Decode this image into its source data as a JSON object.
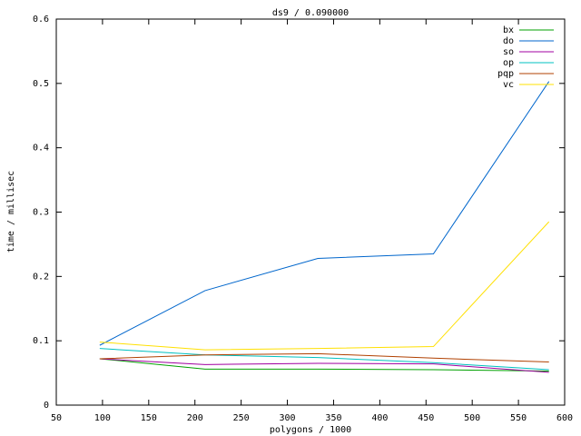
{
  "chart_data": {
    "type": "line",
    "title": "ds9 / 0.090000",
    "x_label": "polygons / 1000",
    "y_label": "time / millisec",
    "x": [
      97,
      211,
      333,
      458,
      583
    ],
    "series": [
      {
        "name": "bx",
        "color": "#00a000",
        "values": [
          0.072,
          0.056,
          0.056,
          0.055,
          0.053
        ]
      },
      {
        "name": "do",
        "color": "#0066cc",
        "values": [
          0.093,
          0.178,
          0.228,
          0.235,
          0.503
        ]
      },
      {
        "name": "so",
        "color": "#a000a0",
        "values": [
          0.072,
          0.063,
          0.065,
          0.064,
          0.051
        ]
      },
      {
        "name": "op",
        "color": "#00c0c0",
        "values": [
          0.088,
          0.078,
          0.074,
          0.066,
          0.055
        ]
      },
      {
        "name": "pqp",
        "color": "#b04000",
        "values": [
          0.072,
          0.078,
          0.08,
          0.073,
          0.067
        ]
      },
      {
        "name": "vc",
        "color": "#ffe000",
        "values": [
          0.098,
          0.086,
          0.088,
          0.091,
          0.285
        ]
      }
    ],
    "xlim": [
      50,
      600
    ],
    "xticks": [
      50,
      100,
      150,
      200,
      250,
      300,
      350,
      400,
      450,
      500,
      550,
      600
    ],
    "ylim": [
      0,
      0.6
    ],
    "yticks": [
      0,
      0.1,
      0.2,
      0.3,
      0.4,
      0.5,
      0.6
    ],
    "legend": "top-right"
  }
}
